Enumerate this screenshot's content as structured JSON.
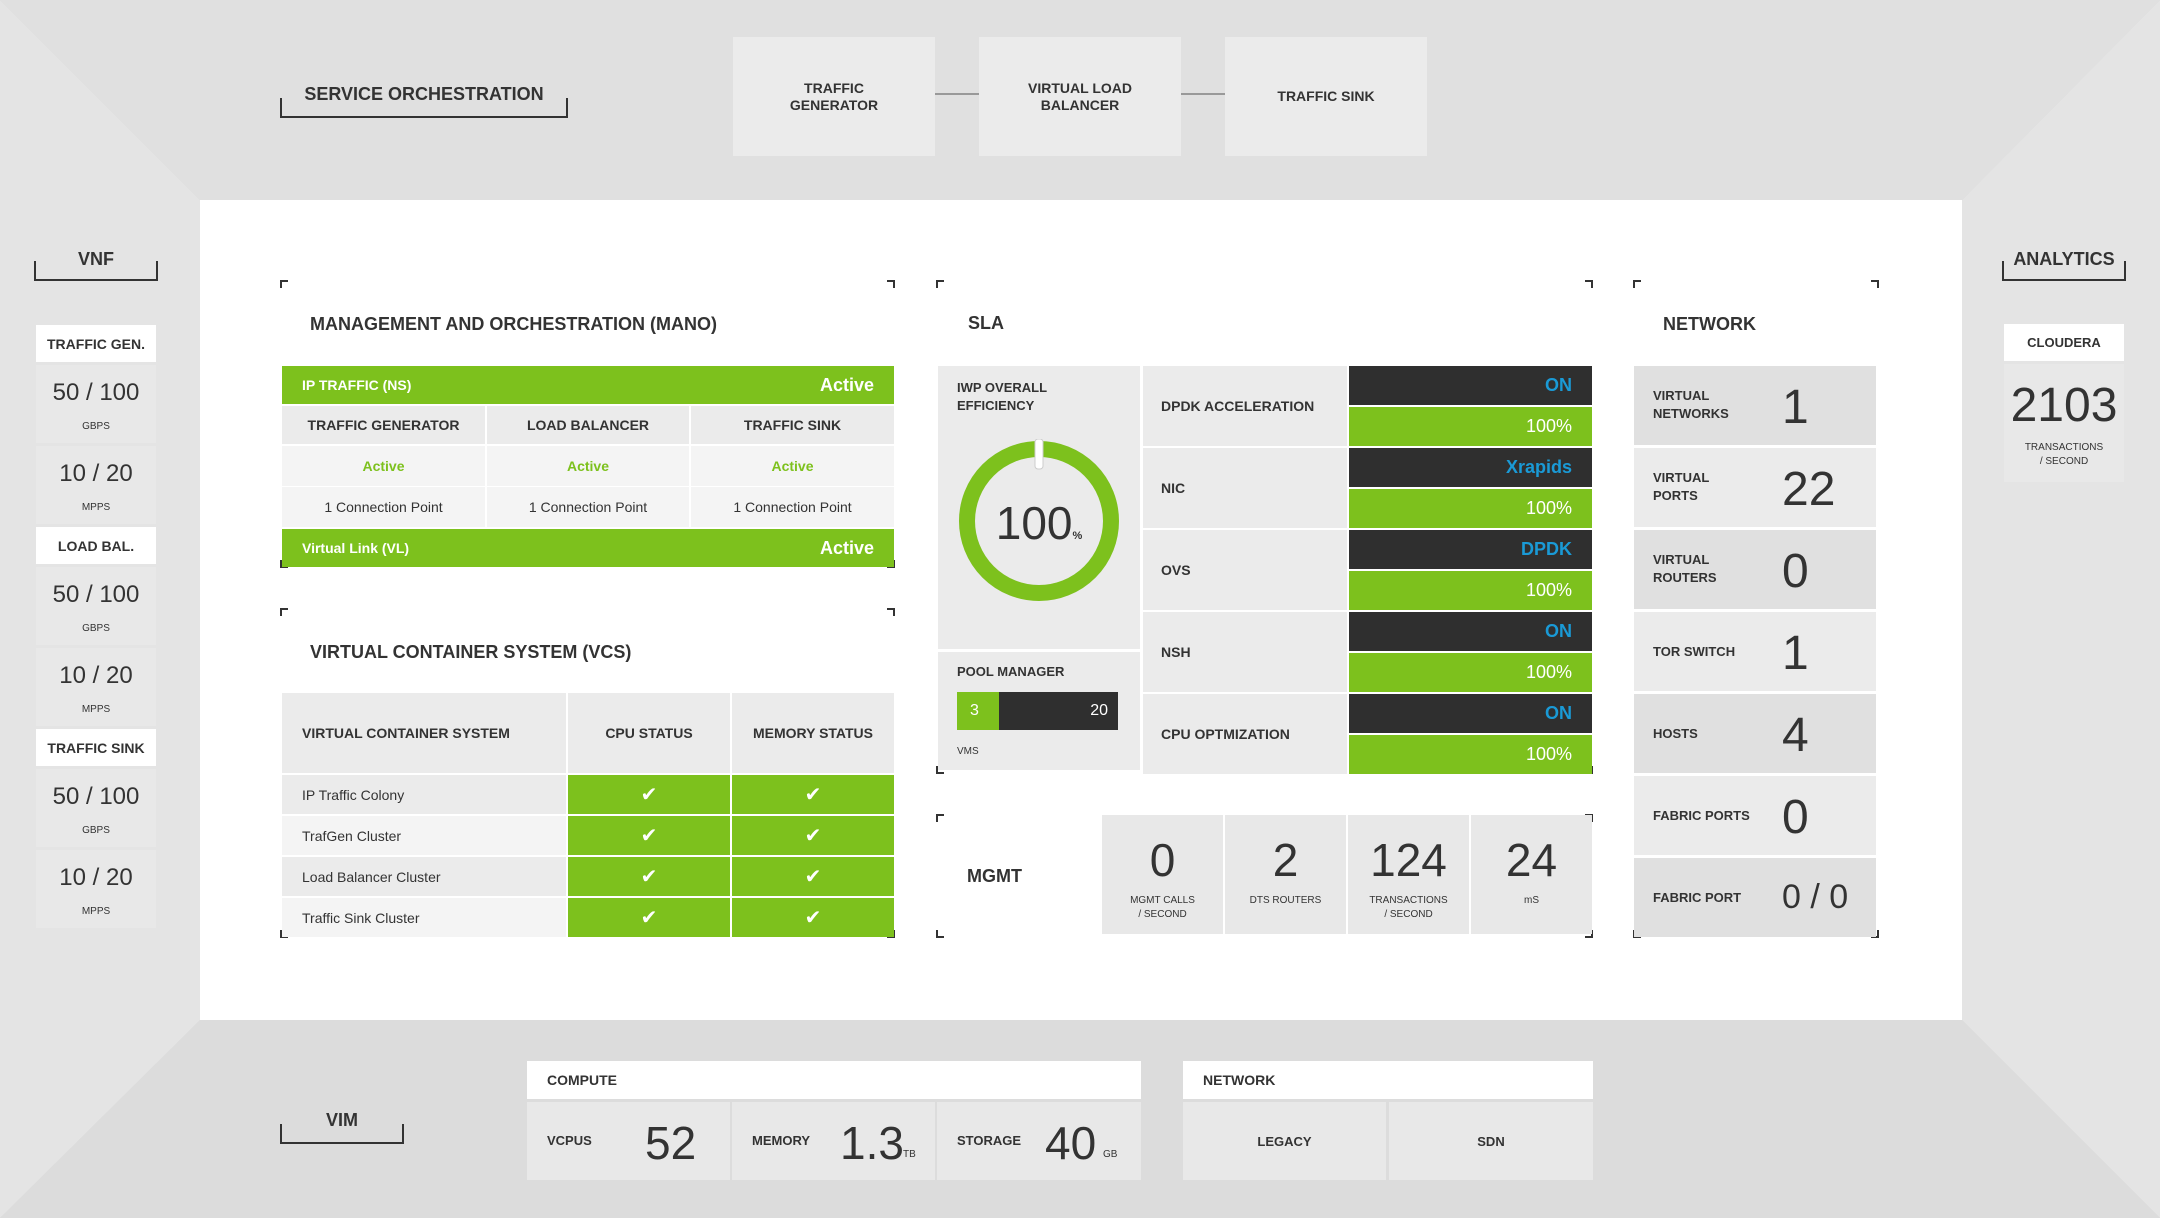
{
  "top": {
    "service_orchestration": "SERVICE ORCHESTRATION",
    "boxes": [
      "TRAFFIC GENERATOR",
      "VIRTUAL LOAD BALANCER",
      "TRAFFIC SINK"
    ]
  },
  "vnf": {
    "title": "VNF",
    "groups": [
      {
        "label": "TRAFFIC GEN.",
        "metrics": [
          {
            "value": "50 / 100",
            "unit": "GBPS"
          },
          {
            "value": "10 / 20",
            "unit": "MPPS"
          }
        ]
      },
      {
        "label": "LOAD BAL.",
        "metrics": [
          {
            "value": "50 / 100",
            "unit": "GBPS"
          },
          {
            "value": "10 / 20",
            "unit": "MPPS"
          }
        ]
      },
      {
        "label": "TRAFFIC SINK",
        "metrics": [
          {
            "value": "50 / 100",
            "unit": "GBPS"
          },
          {
            "value": "10 / 20",
            "unit": "MPPS"
          }
        ]
      }
    ]
  },
  "analytics": {
    "title": "ANALYTICS",
    "label": "CLOUDERA",
    "value": "2103",
    "unit_line1": "TRANSACTIONS",
    "unit_line2": "/ SECOND"
  },
  "mano": {
    "title": "MANAGEMENT AND ORCHESTRATION (MANO)",
    "header_left": "IP TRAFFIC (NS)",
    "header_right": "Active",
    "columns": [
      "TRAFFIC GENERATOR",
      "LOAD BALANCER",
      "TRAFFIC SINK"
    ],
    "statuses": [
      "Active",
      "Active",
      "Active"
    ],
    "points": [
      "1 Connection Point",
      "1 Connection Point",
      "1 Connection Point"
    ],
    "footer_left": "Virtual Link (VL)",
    "footer_right": "Active"
  },
  "vcs": {
    "title": "VIRTUAL CONTAINER SYSTEM (VCS)",
    "headers": [
      "VIRTUAL CONTAINER SYSTEM",
      "CPU STATUS",
      "MEMORY STATUS"
    ],
    "rows": [
      "IP Traffic Colony",
      "TrafGen Cluster",
      "Load Balancer Cluster",
      "Traffic Sink Cluster"
    ],
    "check": "✔"
  },
  "sla": {
    "title": "SLA",
    "iwp_line1": "IWP OVERALL",
    "iwp_line2": "EFFICIENCY",
    "efficiency": "100",
    "efficiency_unit": "%",
    "efficiency_fraction": 1.0,
    "pool_manager": "POOL MANAGER",
    "pool_used": "3",
    "pool_total": "20",
    "pool_fraction": 0.15,
    "vms": "VMS",
    "rows": [
      {
        "label": "DPDK ACCELERATION",
        "status": "ON",
        "percent": "100%"
      },
      {
        "label": "NIC",
        "status": "Xrapids",
        "percent": "100%"
      },
      {
        "label": "OVS",
        "status": "DPDK",
        "percent": "100%"
      },
      {
        "label": "NSH",
        "status": "ON",
        "percent": "100%"
      },
      {
        "label": "CPU OPTMIZATION",
        "status": "ON",
        "percent": "100%"
      }
    ]
  },
  "mgmt": {
    "title": "MGMT",
    "stats": [
      {
        "value": "0",
        "line1": "MGMT CALLS",
        "line2": "/ SECOND"
      },
      {
        "value": "2",
        "line1": "DTS ROUTERS",
        "line2": ""
      },
      {
        "value": "124",
        "line1": "TRANSACTIONS",
        "line2": "/ SECOND"
      },
      {
        "value": "24",
        "line1": "mS",
        "line2": ""
      }
    ]
  },
  "network": {
    "title": "NETWORK",
    "rows": [
      {
        "line1": "VIRTUAL",
        "line2": "NETWORKS",
        "value": "1"
      },
      {
        "line1": "VIRTUAL",
        "line2": "PORTS",
        "value": "22"
      },
      {
        "line1": "VIRTUAL",
        "line2": "ROUTERS",
        "value": "0"
      },
      {
        "line1": "TOR SWITCH",
        "line2": "",
        "value": "1"
      },
      {
        "line1": "HOSTS",
        "line2": "",
        "value": "4"
      },
      {
        "line1": "FABRIC PORTS",
        "line2": "",
        "value": "0"
      },
      {
        "line1": "FABRIC PORT",
        "line2": "",
        "value": "0 / 0"
      }
    ]
  },
  "vim": {
    "title": "VIM",
    "compute_label": "COMPUTE",
    "compute": [
      {
        "label": "VCPUS",
        "value": "52",
        "unit": ""
      },
      {
        "label": "MEMORY",
        "value": "1.3",
        "unit": "TB"
      },
      {
        "label": "STORAGE",
        "value": "40",
        "unit": "GB"
      }
    ],
    "network_label": "NETWORK",
    "network": [
      "LEGACY",
      "SDN"
    ]
  },
  "colors": {
    "accent_green": "#7dc11d",
    "accent_blue": "#1a9ad6",
    "dark": "#2f2f2f"
  }
}
